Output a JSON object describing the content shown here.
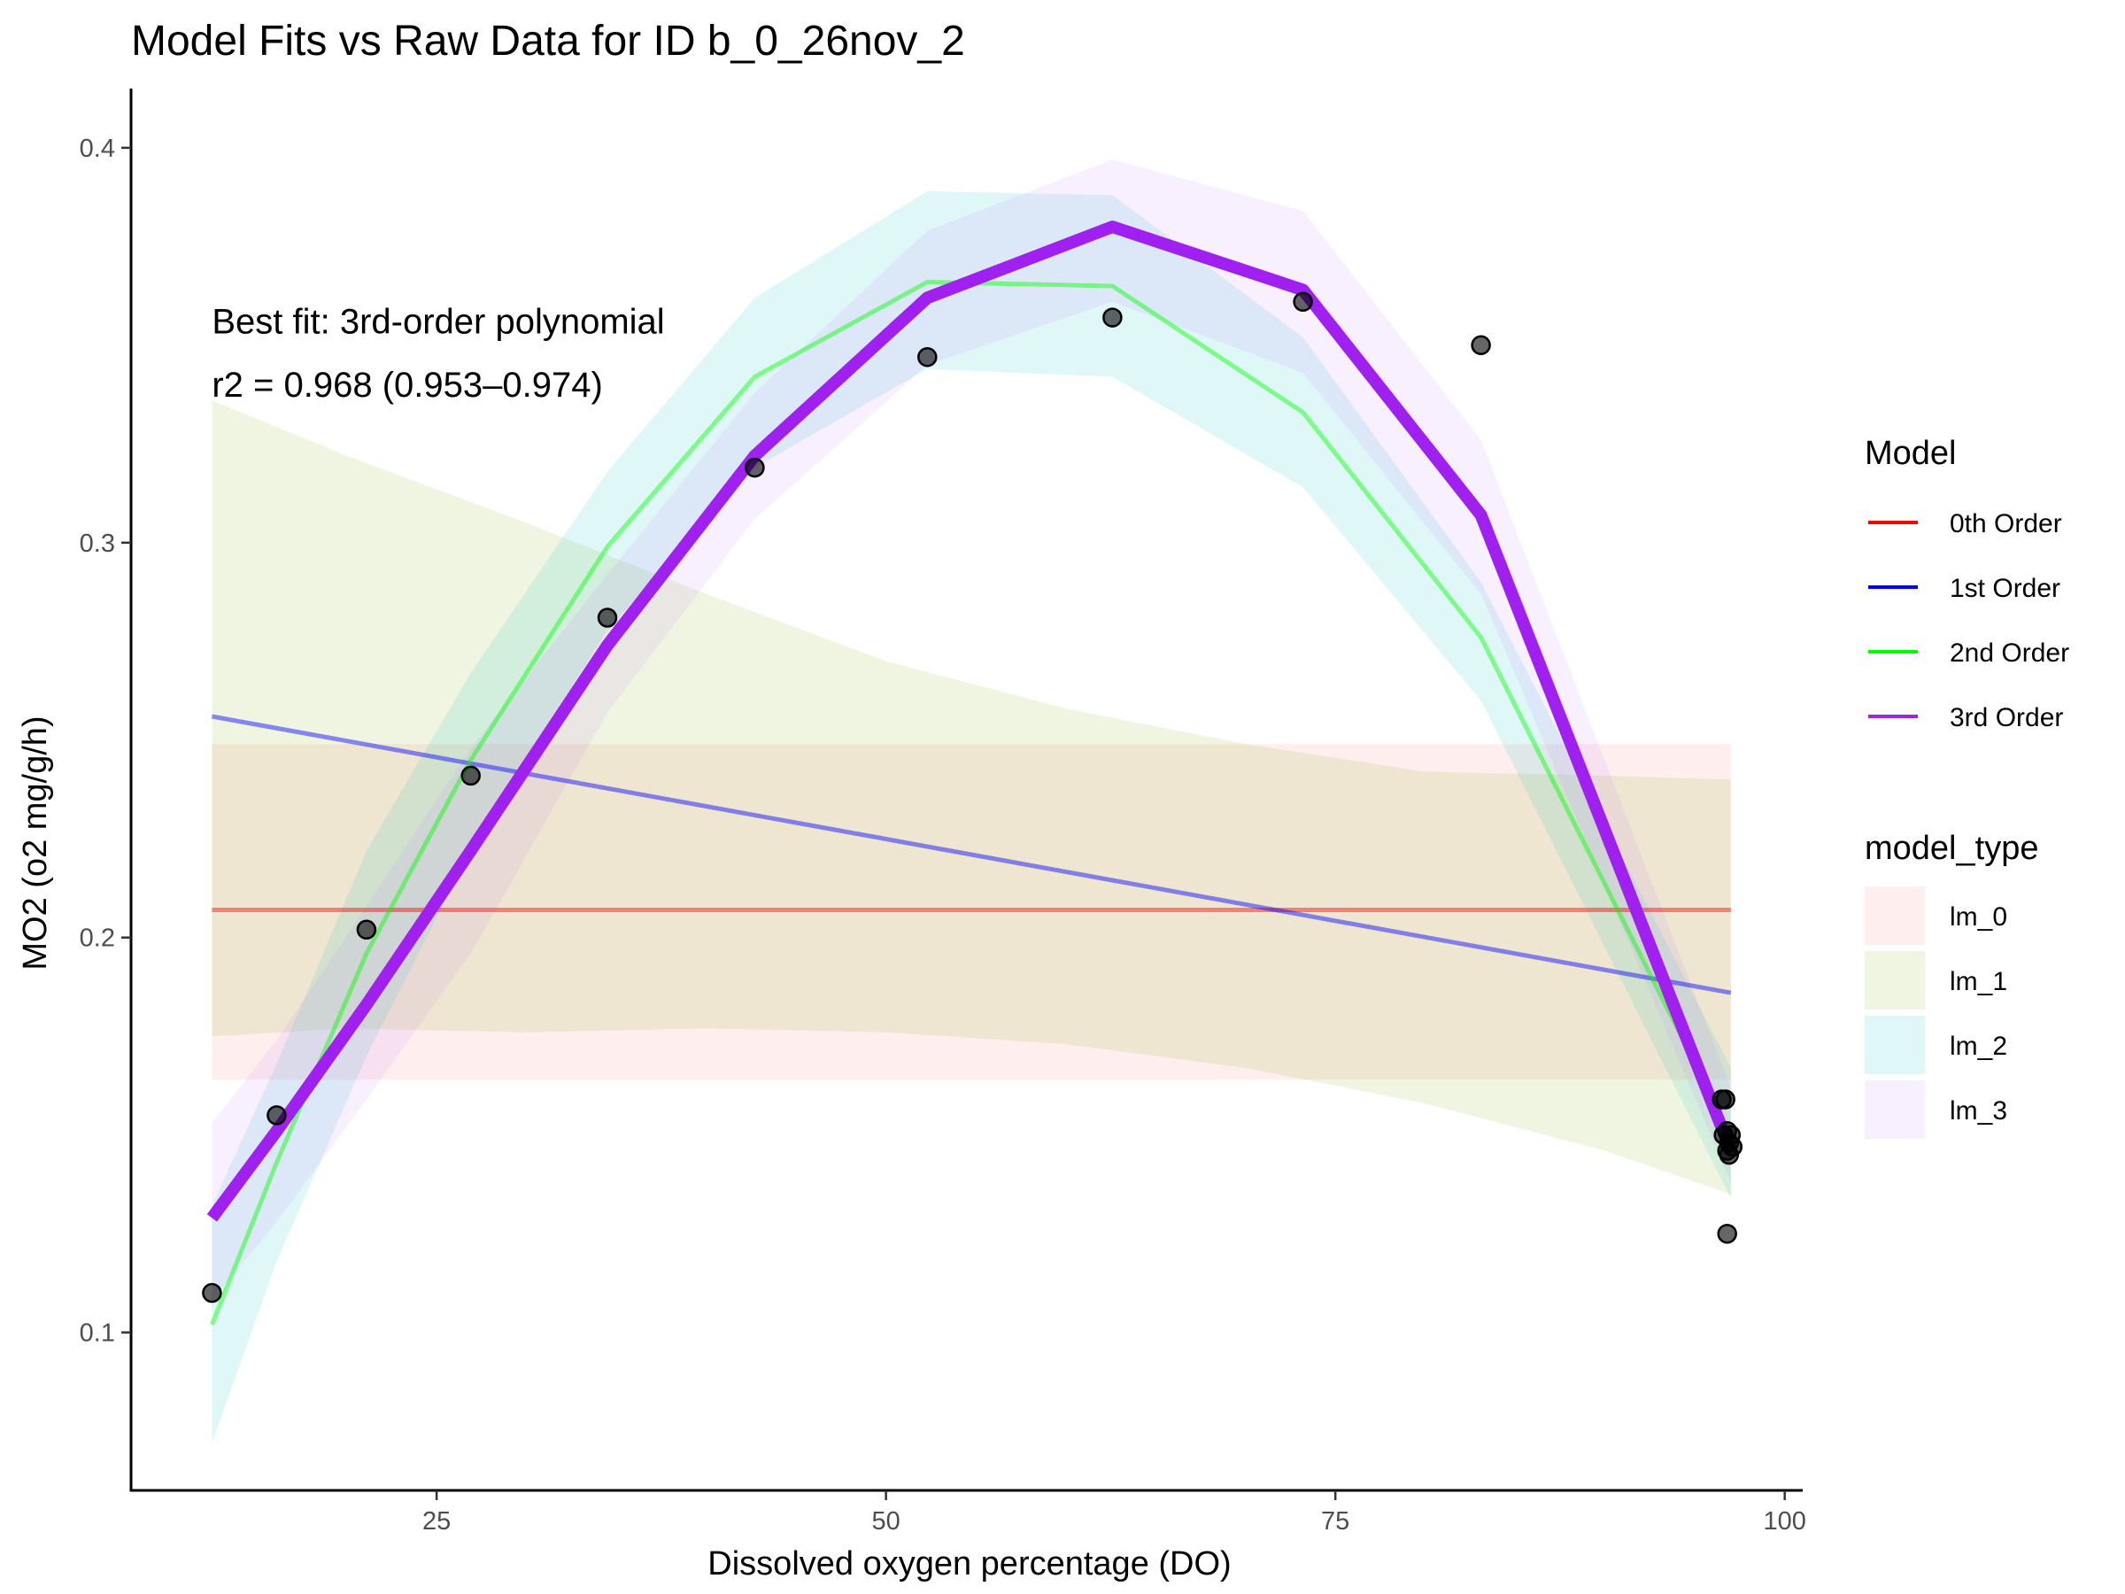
{
  "chart_data": {
    "type": "line",
    "title": "Model Fits vs Raw Data for ID b_0_26nov_2",
    "xlabel": "Dissolved oxygen percentage (DO)",
    "ylabel": "MO2 (o2 mg/g/h)",
    "xlim": [
      8,
      101
    ],
    "ylim": [
      0.06,
      0.415
    ],
    "x_ticks": [
      25,
      50,
      75,
      100
    ],
    "x_tick_labels": [
      "25",
      "50",
      "75",
      "100"
    ],
    "y_ticks": [
      0.1,
      0.2,
      0.3,
      0.4
    ],
    "y_tick_labels": [
      "0.1",
      "0.2",
      "0.3",
      "0.4"
    ],
    "grid": false,
    "annotation": {
      "line1": "Best fit: 3rd-order polynomial",
      "line2": "r2 = 0.968 (0.953–0.974)",
      "x": 12.5,
      "y1": 0.353,
      "y2": 0.337
    },
    "points": {
      "x": [
        12.5,
        16.1,
        21.1,
        26.9,
        34.5,
        42.7,
        52.3,
        62.6,
        73.2,
        83.1,
        96.5,
        96.7,
        96.8,
        96.9,
        97.0,
        97.1,
        96.6,
        96.8,
        96.9,
        96.8
      ],
      "y": [
        0.11,
        0.155,
        0.202,
        0.241,
        0.281,
        0.319,
        0.347,
        0.357,
        0.361,
        0.35,
        0.159,
        0.159,
        0.151,
        0.148,
        0.15,
        0.147,
        0.15,
        0.146,
        0.145,
        0.125
      ]
    },
    "ribbons": [
      {
        "name": "lm_0",
        "x": [
          12.5,
          97.0
        ],
        "lower": [
          0.164,
          0.164
        ],
        "upper": [
          0.249,
          0.249
        ]
      },
      {
        "name": "lm_1",
        "x": [
          12.5,
          20,
          30,
          40,
          50,
          60,
          70,
          80,
          90,
          97.0
        ],
        "lower": [
          0.175,
          0.177,
          0.176,
          0.177,
          0.176,
          0.173,
          0.167,
          0.158,
          0.146,
          0.135
        ],
        "upper": [
          0.336,
          0.322,
          0.305,
          0.287,
          0.27,
          0.258,
          0.249,
          0.242,
          0.241,
          0.24
        ]
      },
      {
        "name": "lm_2",
        "x": [
          12.5,
          16.1,
          21.1,
          26.9,
          34.5,
          42.7,
          52.3,
          62.6,
          73.2,
          83.1,
          97.0
        ],
        "lower": [
          0.072,
          0.118,
          0.17,
          0.222,
          0.278,
          0.319,
          0.344,
          0.342,
          0.314,
          0.26,
          0.134
        ],
        "upper": [
          0.132,
          0.168,
          0.222,
          0.267,
          0.318,
          0.362,
          0.389,
          0.388,
          0.352,
          0.29,
          0.167
        ]
      },
      {
        "name": "lm_3",
        "x": [
          12.5,
          16.1,
          21.1,
          26.9,
          34.5,
          42.7,
          52.3,
          62.6,
          73.2,
          83.1,
          97.0
        ],
        "lower": [
          0.108,
          0.128,
          0.159,
          0.196,
          0.257,
          0.306,
          0.345,
          0.361,
          0.343,
          0.287,
          0.138
        ],
        "upper": [
          0.153,
          0.174,
          0.208,
          0.248,
          0.292,
          0.338,
          0.379,
          0.397,
          0.384,
          0.326,
          0.162
        ]
      }
    ],
    "series": [
      {
        "name": "0th Order",
        "color": "#ff0000",
        "x": [
          12.5,
          97.0
        ],
        "y": [
          0.207,
          0.207
        ]
      },
      {
        "name": "1st Order",
        "color": "#0000ff",
        "x": [
          12.5,
          97.0
        ],
        "y": [
          0.256,
          0.186
        ]
      },
      {
        "name": "2nd Order",
        "color": "#00ff00",
        "x": [
          12.5,
          16.1,
          21.1,
          26.9,
          34.5,
          42.7,
          52.3,
          62.6,
          73.2,
          83.1,
          97.0
        ],
        "y": [
          0.102,
          0.143,
          0.196,
          0.245,
          0.299,
          0.342,
          0.366,
          0.365,
          0.333,
          0.276,
          0.15
        ]
      },
      {
        "name": "3rd Order",
        "color": "#a020f0",
        "x": [
          12.5,
          16.1,
          21.1,
          26.9,
          34.5,
          42.7,
          52.3,
          62.6,
          73.2,
          83.1,
          97.0
        ],
        "y": [
          0.129,
          0.151,
          0.183,
          0.222,
          0.274,
          0.322,
          0.362,
          0.38,
          0.364,
          0.307,
          0.146
        ]
      }
    ],
    "legend_model": {
      "title": "Model",
      "placement": "right",
      "items": [
        {
          "label": "0th Order",
          "color": "#ff0000"
        },
        {
          "label": "1st Order",
          "color": "#0000ff"
        },
        {
          "label": "2nd Order",
          "color": "#00ff00"
        },
        {
          "label": "3rd Order",
          "color": "#a020f0"
        }
      ]
    },
    "legend_fill": {
      "title": "model_type",
      "placement": "right",
      "items": [
        {
          "label": "lm_0",
          "color": "#f8766d"
        },
        {
          "label": "lm_1",
          "color": "#7cae00"
        },
        {
          "label": "lm_2",
          "color": "#00bfc4"
        },
        {
          "label": "lm_3",
          "color": "#c77cff"
        }
      ]
    }
  }
}
